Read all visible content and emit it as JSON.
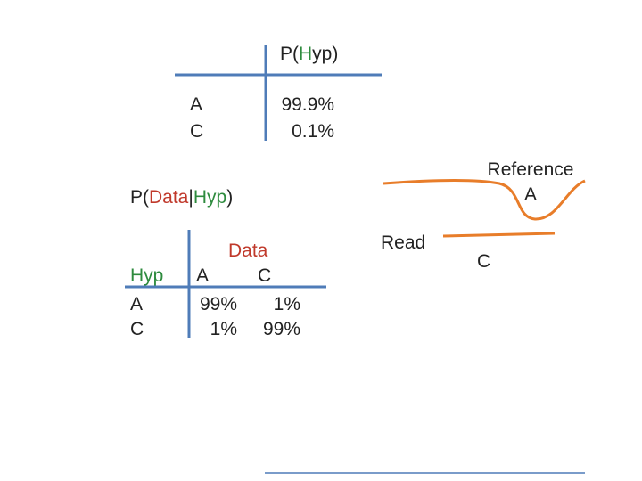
{
  "prior": {
    "label_prefix": "P(",
    "label_hyp": "H",
    "label_rest": "yp)",
    "rows": [
      {
        "base": "A",
        "prob": "99.9%"
      },
      {
        "base": "C",
        "prob": "0.1%"
      }
    ]
  },
  "likelihood": {
    "label_open": "P(",
    "label_data": "Data",
    "label_bar": "|",
    "label_hyp": "Hyp",
    "label_close": ")",
    "data_header": "Data",
    "hyp_header": "Hyp",
    "col_headers": [
      "A",
      "C"
    ],
    "rows": [
      {
        "base": "A",
        "values": [
          "99%",
          "1%"
        ]
      },
      {
        "base": "C",
        "values": [
          "1%",
          "99%"
        ]
      }
    ]
  },
  "alignment": {
    "reference_line1": "Reference",
    "reference_line2": "A",
    "read_label": "Read",
    "read_base": "C"
  },
  "colors": {
    "axis": "#4f7cb8",
    "strand": "#e87d2a",
    "hyp_highlight": "#2e8b3e",
    "data_highlight": "#c0392b"
  }
}
